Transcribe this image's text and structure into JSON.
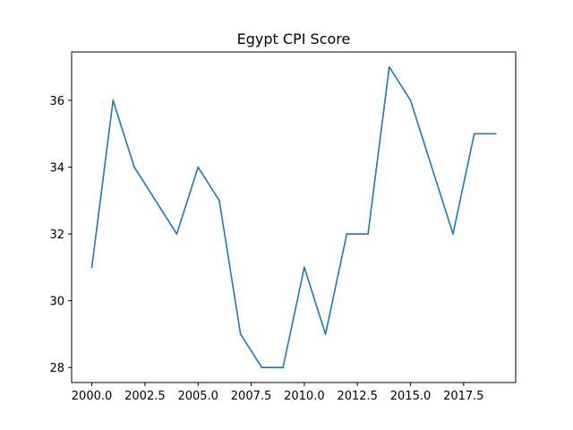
{
  "chart_data": {
    "type": "line",
    "title": "Egypt CPI Score",
    "xlabel": "",
    "ylabel": "",
    "xlim": [
      1999.05,
      2019.95
    ],
    "ylim": [
      27.55,
      37.45
    ],
    "x_ticks": [
      2000.0,
      2002.5,
      2005.0,
      2007.5,
      2010.0,
      2012.5,
      2015.0,
      2017.5
    ],
    "x_tick_labels": [
      "2000.0",
      "2002.5",
      "2005.0",
      "2007.5",
      "2010.0",
      "2012.5",
      "2015.0",
      "2017.5"
    ],
    "y_ticks": [
      28,
      30,
      32,
      34,
      36
    ],
    "y_tick_labels": [
      "28",
      "30",
      "32",
      "34",
      "36"
    ],
    "grid": false,
    "line_color": "#1f77b4",
    "series": [
      {
        "x": [
          2000,
          2001,
          2002,
          2003,
          2004,
          2005,
          2006,
          2007,
          2008,
          2009,
          2010,
          2011,
          2012,
          2013,
          2014,
          2015,
          2016,
          2017,
          2018,
          2019
        ],
        "y": [
          31,
          36,
          34,
          33,
          32,
          34,
          33,
          29,
          28,
          28,
          31,
          29,
          32,
          32,
          37,
          36,
          34,
          32,
          35,
          35
        ]
      }
    ]
  }
}
